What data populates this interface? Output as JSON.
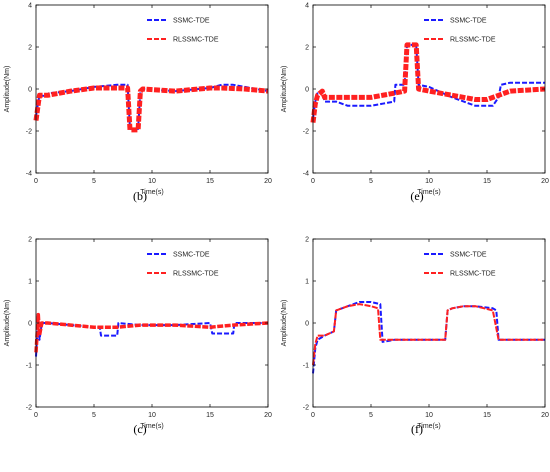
{
  "colors": {
    "ssmc": "#1a1aff",
    "rlssmc": "#ff2020",
    "axis": "#000000",
    "background": "#ffffff"
  },
  "legend": {
    "position": "top-right"
  },
  "chart_data": [
    {
      "panel_label": "(b)",
      "type": "line",
      "xlabel": "Time(s)",
      "ylabel": "Amplitude(Nm)",
      "xlim": [
        0,
        20
      ],
      "ylim": [
        -4,
        4
      ],
      "xticks": [
        0,
        5,
        10,
        15,
        20
      ],
      "yticks": [
        -4,
        -2,
        0,
        2,
        4
      ],
      "grid": false,
      "series": [
        {
          "name": "SSMC-TDE",
          "style": "dashed",
          "x": [
            0,
            0.2,
            0.3,
            1,
            1.1,
            3,
            5,
            7,
            7.9,
            8.1,
            8.8,
            9.0,
            9.2,
            12,
            15,
            16,
            17,
            18,
            20
          ],
          "y": [
            -1.3,
            -0.6,
            -0.3,
            -0.35,
            -0.2,
            -0.1,
            0.1,
            0.2,
            0.2,
            -1.9,
            -1.9,
            -0.1,
            0.0,
            -0.1,
            0.05,
            0.2,
            0.2,
            0.1,
            -0.1
          ]
        },
        {
          "name": "RLSSMC-TDE",
          "style": "dashed",
          "x": [
            0,
            0.2,
            0.3,
            1,
            3,
            5,
            7,
            7.9,
            8.1,
            8.8,
            9.0,
            9.2,
            12,
            15,
            16,
            18,
            20
          ],
          "y": [
            -1.5,
            -0.7,
            -0.3,
            -0.3,
            -0.1,
            0.05,
            0.05,
            0.05,
            -1.95,
            -1.95,
            -0.1,
            0.0,
            -0.1,
            0.05,
            0.05,
            0.0,
            -0.1
          ]
        }
      ]
    },
    {
      "panel_label": "(e)",
      "type": "line",
      "xlabel": "Time(s)",
      "ylabel": "Amplitude(Nm)",
      "xlim": [
        0,
        20
      ],
      "ylim": [
        -4,
        4
      ],
      "xticks": [
        0,
        5,
        10,
        15,
        20
      ],
      "yticks": [
        -4,
        -2,
        0,
        2,
        4
      ],
      "grid": false,
      "series": [
        {
          "name": "SSMC-TDE",
          "style": "dashed",
          "x": [
            0,
            0.2,
            0.4,
            0.8,
            1,
            2,
            3,
            5,
            6,
            7,
            7.1,
            7.9,
            8.1,
            8.9,
            9.1,
            10,
            12,
            14,
            15.5,
            16,
            16.2,
            17,
            20
          ],
          "y": [
            -1.4,
            -0.6,
            -0.2,
            -0.1,
            -0.6,
            -0.6,
            -0.8,
            -0.8,
            -0.7,
            -0.6,
            0.2,
            0.2,
            2.1,
            2.1,
            0.2,
            0.1,
            -0.4,
            -0.8,
            -0.8,
            -0.4,
            0.2,
            0.3,
            0.3
          ]
        },
        {
          "name": "RLSSMC-TDE",
          "style": "dashed",
          "x": [
            0,
            0.2,
            0.4,
            0.8,
            1,
            3,
            5,
            7,
            7.9,
            8.1,
            8.9,
            9.1,
            10,
            12,
            14,
            15,
            16,
            17,
            20
          ],
          "y": [
            -1.6,
            -0.7,
            -0.3,
            -0.1,
            -0.4,
            -0.4,
            -0.4,
            -0.2,
            -0.1,
            2.1,
            2.1,
            0.0,
            -0.1,
            -0.3,
            -0.5,
            -0.5,
            -0.3,
            -0.1,
            0.0
          ]
        }
      ]
    },
    {
      "panel_label": "(c)",
      "type": "line",
      "xlabel": "Time(s)",
      "ylabel": "Amplitude(Nm)",
      "xlim": [
        0,
        20
      ],
      "ylim": [
        -2,
        2
      ],
      "xticks": [
        0,
        5,
        10,
        15,
        20
      ],
      "yticks": [
        -2,
        -1,
        0,
        1,
        2
      ],
      "grid": false,
      "series": [
        {
          "name": "SSMC-TDE",
          "style": "dashed",
          "x": [
            0,
            0.2,
            0.3,
            0.5,
            1,
            3,
            5.5,
            5.6,
            7,
            7.1,
            9,
            12,
            15,
            15.2,
            17,
            17.1,
            20
          ],
          "y": [
            -0.8,
            0.2,
            -0.4,
            0.0,
            0.0,
            -0.05,
            -0.1,
            -0.3,
            -0.3,
            0.0,
            -0.05,
            -0.05,
            0.0,
            -0.25,
            -0.25,
            0.0,
            0.0
          ]
        },
        {
          "name": "RLSSMC-TDE",
          "style": "dashed",
          "x": [
            0,
            0.2,
            0.3,
            0.5,
            1,
            3,
            5,
            7,
            9,
            12,
            15,
            17,
            20
          ],
          "y": [
            -0.7,
            0.2,
            -0.3,
            0.0,
            0.0,
            -0.05,
            -0.1,
            -0.1,
            -0.05,
            -0.05,
            -0.1,
            -0.05,
            0.0
          ]
        }
      ]
    },
    {
      "panel_label": "(f)",
      "type": "line",
      "xlabel": "Time(s)",
      "ylabel": "Amplitude(Nm)",
      "xlim": [
        0,
        20
      ],
      "ylim": [
        -2,
        2
      ],
      "xticks": [
        0,
        5,
        10,
        15,
        20
      ],
      "yticks": [
        -2,
        -1,
        0,
        1,
        2
      ],
      "grid": false,
      "series": [
        {
          "name": "SSMC-TDE",
          "style": "dashed",
          "x": [
            0,
            0.2,
            0.4,
            1,
            1.8,
            2,
            3,
            4,
            5,
            5.8,
            6,
            7,
            9,
            11.4,
            11.6,
            12,
            13,
            14,
            15.5,
            15.8,
            16,
            17,
            20
          ],
          "y": [
            -1.2,
            -0.6,
            -0.4,
            -0.3,
            -0.2,
            0.3,
            0.4,
            0.5,
            0.5,
            0.45,
            -0.45,
            -0.4,
            -0.4,
            -0.4,
            0.3,
            0.35,
            0.4,
            0.4,
            0.35,
            0.3,
            -0.4,
            -0.4,
            -0.4
          ]
        },
        {
          "name": "RLSSMC-TDE",
          "style": "dashed",
          "x": [
            0,
            0.2,
            0.4,
            1,
            1.8,
            2,
            3,
            4,
            5,
            5.6,
            5.8,
            7,
            9,
            11.4,
            11.6,
            12,
            13,
            14,
            15.5,
            16,
            17,
            20
          ],
          "y": [
            -1.0,
            -0.5,
            -0.3,
            -0.3,
            -0.2,
            0.3,
            0.4,
            0.45,
            0.4,
            0.35,
            -0.4,
            -0.4,
            -0.4,
            -0.4,
            0.3,
            0.35,
            0.4,
            0.4,
            0.3,
            -0.4,
            -0.4,
            -0.4
          ]
        }
      ]
    }
  ]
}
